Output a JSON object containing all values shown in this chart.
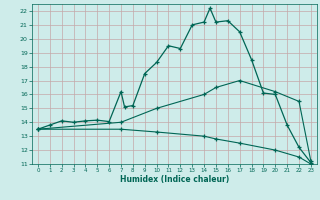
{
  "xlabel": "Humidex (Indice chaleur)",
  "xlim": [
    -0.5,
    23.5
  ],
  "ylim": [
    11,
    22.5
  ],
  "yticks": [
    11,
    12,
    13,
    14,
    15,
    16,
    17,
    18,
    19,
    20,
    21,
    22
  ],
  "xticks": [
    0,
    1,
    2,
    3,
    4,
    5,
    6,
    7,
    8,
    9,
    10,
    11,
    12,
    13,
    14,
    15,
    16,
    17,
    18,
    19,
    20,
    21,
    22,
    23
  ],
  "bg_color": "#ceecea",
  "grid_color": "#c4a8a8",
  "line_color": "#006655",
  "line1_x": [
    0,
    1,
    2,
    3,
    4,
    5,
    6,
    7,
    7.3,
    8,
    9,
    10,
    11,
    12,
    13,
    14,
    14.5,
    15,
    16,
    17,
    18,
    19,
    20,
    21,
    22,
    23
  ],
  "line1_y": [
    13.5,
    13.8,
    14.1,
    14.0,
    14.1,
    14.15,
    14.05,
    16.2,
    15.1,
    15.2,
    17.5,
    18.3,
    19.5,
    19.3,
    21.0,
    21.2,
    22.2,
    21.2,
    21.3,
    20.5,
    18.5,
    16.1,
    16.0,
    13.8,
    12.2,
    11.1
  ],
  "line2_x": [
    0,
    7,
    10,
    14,
    15,
    17,
    20,
    22,
    23
  ],
  "line2_y": [
    13.5,
    14.0,
    15.0,
    16.0,
    16.5,
    17.0,
    16.2,
    15.5,
    11.2
  ],
  "line3_x": [
    0,
    7,
    10,
    14,
    15,
    17,
    20,
    22,
    23
  ],
  "line3_y": [
    13.5,
    13.5,
    13.3,
    13.0,
    12.8,
    12.5,
    12.0,
    11.5,
    11.0
  ]
}
